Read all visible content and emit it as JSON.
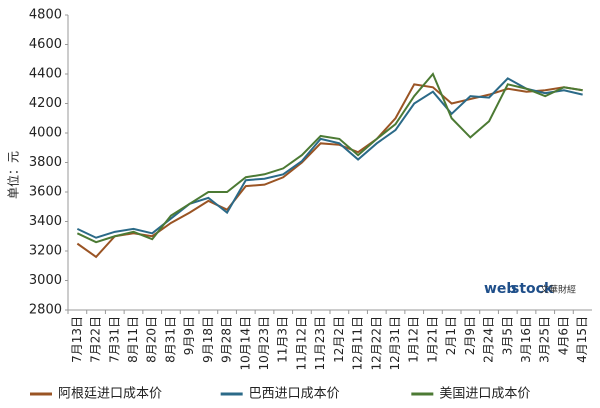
{
  "chart_data": {
    "type": "line",
    "y_label": "单位：元",
    "categories": [
      "7月13日",
      "7月22日",
      "7月31日",
      "8月11日",
      "8月20日",
      "8月31日",
      "9月9日",
      "9月18日",
      "9月28日",
      "10月14日",
      "10月23日",
      "11月3日",
      "11月12日",
      "11月23日",
      "12月2日",
      "12月11日",
      "12月22日",
      "12月31日",
      "1月12日",
      "1月21日",
      "2月1日",
      "2月9日",
      "2月24日",
      "3月5日",
      "3月16日",
      "3月25日",
      "4月6日",
      "4月15日"
    ],
    "series": [
      {
        "name": "阿根廷进口成本价",
        "color": "#9a5424",
        "values": [
          3250,
          3160,
          3300,
          3320,
          3300,
          3390,
          3460,
          3540,
          3480,
          3640,
          3650,
          3700,
          3800,
          3930,
          3920,
          3870,
          3960,
          4100,
          4330,
          4310,
          4200,
          4230,
          4260,
          4300,
          4280,
          4290,
          4310,
          4290
        ]
      },
      {
        "name": "巴西进口成本价",
        "color": "#2b6a88",
        "values": [
          3350,
          3290,
          3330,
          3350,
          3320,
          3420,
          3520,
          3560,
          3460,
          3680,
          3690,
          3720,
          3810,
          3960,
          3930,
          3820,
          3930,
          4020,
          4200,
          4280,
          4130,
          4250,
          4240,
          4370,
          4300,
          4270,
          4290,
          4260
        ]
      },
      {
        "name": "美国进口成本价",
        "color": "#4c7a34",
        "values": [
          3320,
          3260,
          3300,
          3330,
          3280,
          3440,
          3520,
          3600,
          3600,
          3700,
          3720,
          3760,
          3850,
          3980,
          3960,
          3850,
          3960,
          4060,
          4250,
          4400,
          4100,
          3970,
          4080,
          4330,
          4300,
          4250,
          4310,
          4290
        ]
      }
    ],
    "ylim": [
      2800,
      4800
    ],
    "yticks": [
      2800,
      3000,
      3200,
      3400,
      3600,
      3800,
      4000,
      4200,
      4400,
      4600,
      4800
    ],
    "grid": false,
    "watermark": {
      "brand_a": "web",
      "brand_b": "stock",
      "text": "文華財經"
    }
  }
}
